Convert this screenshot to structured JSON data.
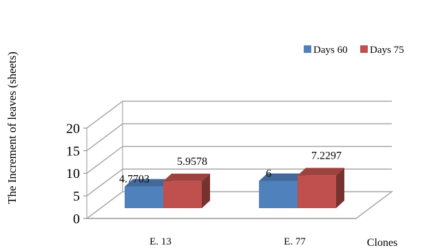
{
  "chart_data": {
    "type": "bar",
    "title": "",
    "xlabel": "Clones",
    "ylabel": "The Increment of leaves (sheets)",
    "categories": [
      "E. 13",
      "E. 77"
    ],
    "series": [
      {
        "name": "Days 60",
        "values": [
          4.7703,
          6
        ],
        "labels": [
          "4.7703",
          "6"
        ],
        "color": "#4F81BD"
      },
      {
        "name": "Days 75",
        "values": [
          5.9578,
          7.2297
        ],
        "labels": [
          "5.9578",
          "7.2297"
        ],
        "color": "#C0504D"
      }
    ],
    "ylim": [
      0,
      20
    ],
    "yticks": [
      0,
      5,
      10,
      15,
      20
    ],
    "grid": true,
    "three_d": true,
    "legend_position": "top-right"
  }
}
